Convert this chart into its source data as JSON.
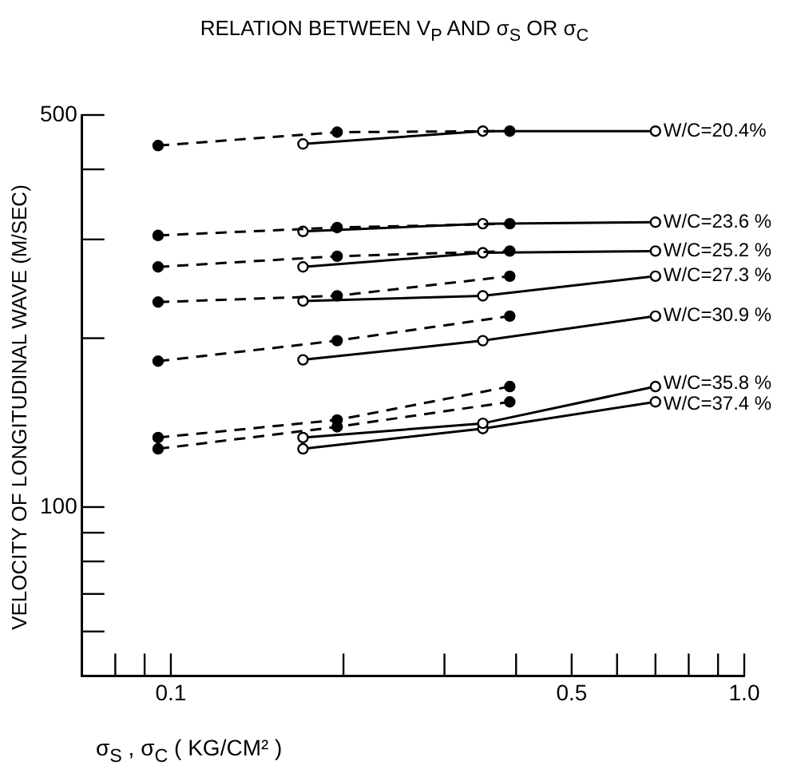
{
  "chart_data": {
    "type": "line",
    "title": "RELATION BETWEEN V$_{P}$ AND σ$_{S}$ OR σ$_{C}$",
    "xlabel": "σ$_{S}$ , σ$_{C}$ ( KG/CM² )",
    "ylabel": "VELOCITY OF LONGITUDINAL WAVE (M/SEC)",
    "log": "xy",
    "grid": false,
    "legend": false,
    "marker": "circle",
    "xlim": [
      0.07,
      1.0
    ],
    "xticks": [
      {
        "value": 0.08,
        "label": null
      },
      {
        "value": 0.09,
        "label": null
      },
      0.1,
      {
        "value": 0.2,
        "label": null
      },
      {
        "value": 0.3,
        "label": null
      },
      {
        "value": 0.4,
        "label": null
      },
      0.5,
      {
        "value": 0.6,
        "label": null
      },
      {
        "value": 0.7,
        "label": null
      },
      {
        "value": 0.8,
        "label": null
      },
      {
        "value": 0.9,
        "label": null
      },
      {
        "value": 1.0,
        "label": "1.0"
      }
    ],
    "ylim": [
      50,
      500
    ],
    "yticks": [
      {
        "value": 60,
        "label": null
      },
      {
        "value": 70,
        "label": null
      },
      {
        "value": 80,
        "label": null
      },
      {
        "value": 90,
        "label": null
      },
      100,
      {
        "value": 200,
        "label": null
      },
      {
        "value": 300,
        "label": null
      },
      {
        "value": 400,
        "label": null
      },
      500
    ],
    "series": [
      {
        "color": "#000000",
        "line_style": "dashed",
        "x": [
          0.095,
          0.195,
          0.39
        ],
        "values": [
          441,
          466,
          468
        ]
      },
      {
        "name": "W/C=20.4%",
        "color": "#000000",
        "line_style": "solid",
        "x": [
          0.17,
          0.35,
          0.7
        ],
        "values": [
          444,
          468,
          468
        ]
      },
      {
        "color": "#000000",
        "line_style": "dashed",
        "x": [
          0.095,
          0.195,
          0.39
        ],
        "values": [
          305,
          315,
          320
        ]
      },
      {
        "name": "W/C=23.6 %",
        "color": "#000000",
        "line_style": "solid",
        "x": [
          0.17,
          0.35,
          0.7
        ],
        "values": [
          310,
          320,
          322
        ]
      },
      {
        "color": "#000000",
        "line_style": "dashed",
        "x": [
          0.095,
          0.195,
          0.39
        ],
        "values": [
          268,
          280,
          286
        ]
      },
      {
        "name": "W/C=25.2 %",
        "color": "#000000",
        "line_style": "solid",
        "x": [
          0.17,
          0.35,
          0.7
        ],
        "values": [
          268,
          284,
          286
        ]
      },
      {
        "color": "#000000",
        "line_style": "dashed",
        "x": [
          0.095,
          0.195,
          0.39
        ],
        "values": [
          232,
          238,
          258
        ]
      },
      {
        "name": "W/C=27.3 %",
        "color": "#000000",
        "line_style": "solid",
        "x": [
          0.17,
          0.35,
          0.7
        ],
        "values": [
          233,
          238,
          258
        ]
      },
      {
        "color": "#000000",
        "line_style": "dashed",
        "x": [
          0.095,
          0.195,
          0.39
        ],
        "values": [
          182,
          198,
          219
        ]
      },
      {
        "name": "W/C=30.9 %",
        "color": "#000000",
        "line_style": "solid",
        "x": [
          0.17,
          0.35,
          0.7
        ],
        "values": [
          183,
          198,
          219
        ]
      },
      {
        "color": "#000000",
        "line_style": "dashed",
        "x": [
          0.095,
          0.195,
          0.39
        ],
        "values": [
          133,
          143,
          164
        ]
      },
      {
        "name": "W/C=35.8 %",
        "color": "#000000",
        "line_style": "solid",
        "x": [
          0.17,
          0.35,
          0.7
        ],
        "values": [
          133,
          141,
          164
        ]
      },
      {
        "color": "#000000",
        "line_style": "dashed",
        "x": [
          0.095,
          0.195,
          0.39
        ],
        "values": [
          127,
          139,
          154
        ]
      },
      {
        "name": "W/C=37.4 %",
        "color": "#000000",
        "line_style": "solid",
        "x": [
          0.17,
          0.35,
          0.7
        ],
        "values": [
          127,
          138,
          154
        ]
      }
    ]
  }
}
